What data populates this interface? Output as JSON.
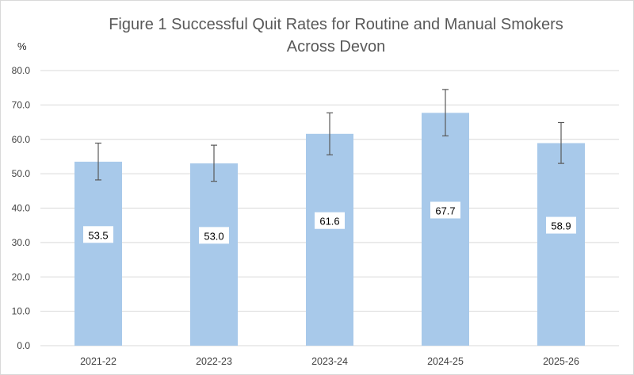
{
  "chart_data": {
    "type": "bar",
    "title": "Figure 1 Successful Quit Rates for Routine and Manual Smokers Across Devon",
    "title_lines": [
      "Figure 1 Successful Quit Rates for Routine and Manual Smokers",
      "Across Devon"
    ],
    "ylabel": "%",
    "xlabel": "",
    "categories": [
      "2021-22",
      "2022-23",
      "2023-24",
      "2024-25",
      "2025-26"
    ],
    "values": [
      53.5,
      53.0,
      61.6,
      67.7,
      58.9
    ],
    "data_labels": [
      "53.5",
      "53.0",
      "61.6",
      "67.7",
      "58.9"
    ],
    "error_bars": {
      "lower": [
        48.2,
        47.8,
        55.5,
        61.0,
        53.0
      ],
      "upper": [
        58.9,
        58.3,
        67.7,
        74.5,
        64.9
      ]
    },
    "ylim": [
      0,
      80
    ],
    "yticks": [
      "0.0",
      "10.0",
      "20.0",
      "30.0",
      "40.0",
      "50.0",
      "60.0",
      "70.0",
      "80.0"
    ],
    "grid": true,
    "legend": "none",
    "colors": {
      "bar": "#a8c9ea",
      "grid": "#d9d9d9",
      "error_bar": "#595959"
    }
  }
}
